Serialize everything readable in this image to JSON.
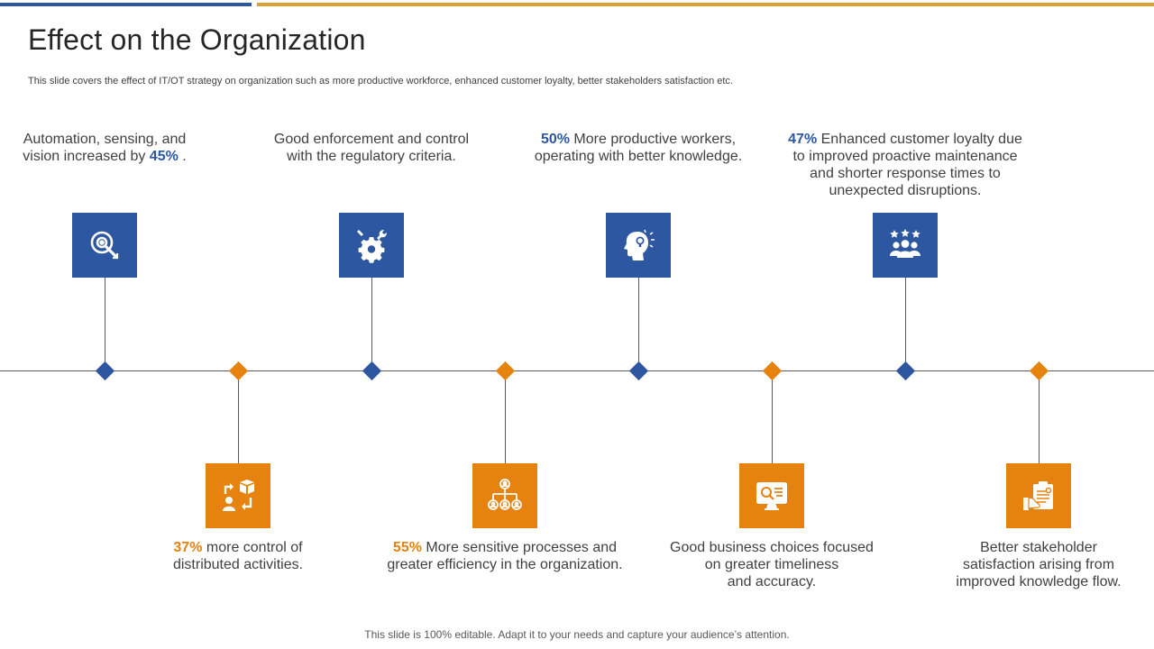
{
  "colors": {
    "blue": "#2d57a0",
    "orange": "#e6820e",
    "topbar_blue": "#2d57a0",
    "topbar_gold": "#d9a22e"
  },
  "header": {
    "title": "Effect on the Organization",
    "subtitle": "This slide covers the effect of IT/OT  strategy on organization such as more productive workforce, enhanced customer loyalty, better stakeholders satisfaction etc."
  },
  "milestones": [
    {
      "icon": "target-icon",
      "color": "blue",
      "lines": [
        {
          "text": "Automation, sensing, and"
        },
        {
          "text": "vision increased by ",
          "highlight": "45%",
          "suffix": " ."
        }
      ]
    },
    {
      "icon": "arrows-boxes-icon",
      "color": "orange",
      "lines": [
        {
          "highlight": "37%",
          "text": " more control of"
        },
        {
          "text": "distributed activities."
        }
      ]
    },
    {
      "icon": "gear-tools-icon",
      "color": "blue",
      "lines": [
        {
          "text": "Good enforcement  and control"
        },
        {
          "text": "with the regulatory  criteria."
        }
      ]
    },
    {
      "icon": "hierarchy-icon",
      "color": "orange",
      "lines": [
        {
          "highlight": "55%",
          "text": " More sensitive processes and"
        },
        {
          "text": "greater efficiency in the organization."
        }
      ]
    },
    {
      "icon": "head-idea-icon",
      "color": "blue",
      "lines": [
        {
          "highlight": "50%",
          "text": " More productive workers,"
        },
        {
          "text": "operating with better knowledge."
        }
      ]
    },
    {
      "icon": "monitor-search-icon",
      "color": "orange",
      "lines": [
        {
          "text": "Good business choices focused"
        },
        {
          "text": "on greater timeliness"
        },
        {
          "text": "and accuracy."
        }
      ]
    },
    {
      "icon": "team-stars-icon",
      "color": "blue",
      "lines": [
        {
          "highlight": "47%",
          "text": " Enhanced customer loyalty due"
        },
        {
          "text": "to improved proactive maintenance"
        },
        {
          "text": "and shorter response times to"
        },
        {
          "text": "unexpected disruptions."
        }
      ]
    },
    {
      "icon": "clipboard-hand-icon",
      "color": "orange",
      "lines": [
        {
          "text": "Better stakeholder"
        },
        {
          "text": "satisfaction arising from"
        },
        {
          "text": "improved knowledge flow."
        }
      ]
    }
  ],
  "footer": {
    "text": "This slide is 100% editable. Adapt it to your needs and capture your audience’s attention."
  }
}
